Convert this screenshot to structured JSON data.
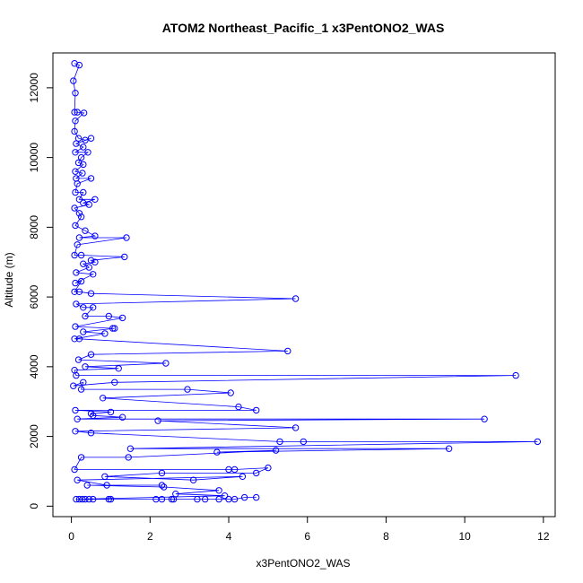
{
  "chart_data": {
    "type": "scatter",
    "title": "ATOM2 Northeast_Pacific_1 x3PentONO2_WAS",
    "xlabel": "x3PentONO2_WAS",
    "ylabel": "Altitude (m)",
    "xlim": [
      -0.47,
      12.3
    ],
    "ylim": [
      -300,
      13000
    ],
    "xticks": [
      0,
      2,
      4,
      6,
      8,
      10,
      12
    ],
    "yticks": [
      0,
      2000,
      4000,
      6000,
      8000,
      10000,
      12000
    ],
    "grid": false,
    "series_color": "#0000ff",
    "markers": "open-circle",
    "connected": true,
    "points": [
      [
        0.08,
        12700
      ],
      [
        0.2,
        12650
      ],
      [
        0.05,
        12200
      ],
      [
        0.1,
        11850
      ],
      [
        0.08,
        11300
      ],
      [
        0.15,
        11300
      ],
      [
        0.32,
        11280
      ],
      [
        0.1,
        11050
      ],
      [
        0.08,
        10750
      ],
      [
        0.18,
        10550
      ],
      [
        0.35,
        10500
      ],
      [
        0.5,
        10550
      ],
      [
        0.12,
        10400
      ],
      [
        0.3,
        10300
      ],
      [
        0.1,
        10150
      ],
      [
        0.42,
        10150
      ],
      [
        0.25,
        10000
      ],
      [
        0.18,
        9850
      ],
      [
        0.3,
        9800
      ],
      [
        0.1,
        9600
      ],
      [
        0.28,
        9550
      ],
      [
        0.12,
        9400
      ],
      [
        0.5,
        9400
      ],
      [
        0.15,
        9250
      ],
      [
        0.1,
        9000
      ],
      [
        0.3,
        9000
      ],
      [
        0.2,
        8800
      ],
      [
        0.6,
        8800
      ],
      [
        0.3,
        8700
      ],
      [
        0.45,
        8650
      ],
      [
        0.08,
        8550
      ],
      [
        0.2,
        8400
      ],
      [
        0.25,
        8300
      ],
      [
        0.1,
        8050
      ],
      [
        0.35,
        7900
      ],
      [
        0.6,
        7750
      ],
      [
        0.2,
        7700
      ],
      [
        1.4,
        7700
      ],
      [
        0.15,
        7500
      ],
      [
        0.08,
        7200
      ],
      [
        0.25,
        7200
      ],
      [
        1.35,
        7150
      ],
      [
        0.5,
        7050
      ],
      [
        0.6,
        7000
      ],
      [
        0.3,
        6950
      ],
      [
        0.45,
        6850
      ],
      [
        0.12,
        6700
      ],
      [
        0.55,
        6650
      ],
      [
        0.1,
        6400
      ],
      [
        0.25,
        6450
      ],
      [
        0.08,
        6150
      ],
      [
        0.2,
        6150
      ],
      [
        0.5,
        6100
      ],
      [
        5.7,
        5950
      ],
      [
        0.12,
        5800
      ],
      [
        0.3,
        5700
      ],
      [
        0.55,
        5700
      ],
      [
        0.35,
        5450
      ],
      [
        0.95,
        5450
      ],
      [
        1.3,
        5400
      ],
      [
        0.1,
        5150
      ],
      [
        1.05,
        5100
      ],
      [
        1.1,
        5100
      ],
      [
        0.3,
        5000
      ],
      [
        0.85,
        4950
      ],
      [
        0.08,
        4800
      ],
      [
        0.2,
        4800
      ],
      [
        5.5,
        4450
      ],
      [
        0.5,
        4350
      ],
      [
        0.18,
        4200
      ],
      [
        2.4,
        4100
      ],
      [
        0.35,
        4000
      ],
      [
        1.2,
        3950
      ],
      [
        0.08,
        3900
      ],
      [
        0.12,
        3750
      ],
      [
        11.3,
        3750
      ],
      [
        1.1,
        3550
      ],
      [
        0.05,
        3450
      ],
      [
        0.3,
        3550
      ],
      [
        0.25,
        3350
      ],
      [
        2.95,
        3350
      ],
      [
        4.05,
        3250
      ],
      [
        0.8,
        3100
      ],
      [
        4.25,
        2850
      ],
      [
        4.7,
        2750
      ],
      [
        0.1,
        2750
      ],
      [
        1.0,
        2700
      ],
      [
        0.5,
        2650
      ],
      [
        0.55,
        2600
      ],
      [
        1.3,
        2550
      ],
      [
        0.15,
        2500
      ],
      [
        10.5,
        2500
      ],
      [
        2.2,
        2450
      ],
      [
        5.7,
        2250
      ],
      [
        0.1,
        2150
      ],
      [
        0.5,
        2100
      ],
      [
        5.3,
        1850
      ],
      [
        5.9,
        1850
      ],
      [
        11.85,
        1850
      ],
      [
        1.5,
        1650
      ],
      [
        9.6,
        1650
      ],
      [
        3.7,
        1550
      ],
      [
        5.2,
        1600
      ],
      [
        1.45,
        1400
      ],
      [
        0.25,
        1400
      ],
      [
        0.08,
        1050
      ],
      [
        4.0,
        1050
      ],
      [
        4.15,
        1050
      ],
      [
        5.0,
        1100
      ],
      [
        4.7,
        950
      ],
      [
        2.3,
        950
      ],
      [
        0.85,
        850
      ],
      [
        3.1,
        750
      ],
      [
        4.35,
        850
      ],
      [
        0.15,
        750
      ],
      [
        0.9,
        600
      ],
      [
        2.3,
        600
      ],
      [
        0.4,
        600
      ],
      [
        2.35,
        550
      ],
      [
        3.75,
        450
      ],
      [
        2.65,
        350
      ],
      [
        3.9,
        300
      ],
      [
        0.12,
        200
      ],
      [
        0.2,
        200
      ],
      [
        0.28,
        200
      ],
      [
        0.35,
        200
      ],
      [
        0.45,
        200
      ],
      [
        0.55,
        200
      ],
      [
        0.95,
        200
      ],
      [
        1.0,
        200
      ],
      [
        2.15,
        200
      ],
      [
        2.3,
        200
      ],
      [
        2.55,
        200
      ],
      [
        2.6,
        200
      ],
      [
        3.2,
        200
      ],
      [
        3.4,
        200
      ],
      [
        3.75,
        200
      ],
      [
        4.0,
        200
      ],
      [
        4.15,
        200
      ],
      [
        4.4,
        250
      ],
      [
        4.7,
        250
      ]
    ]
  }
}
